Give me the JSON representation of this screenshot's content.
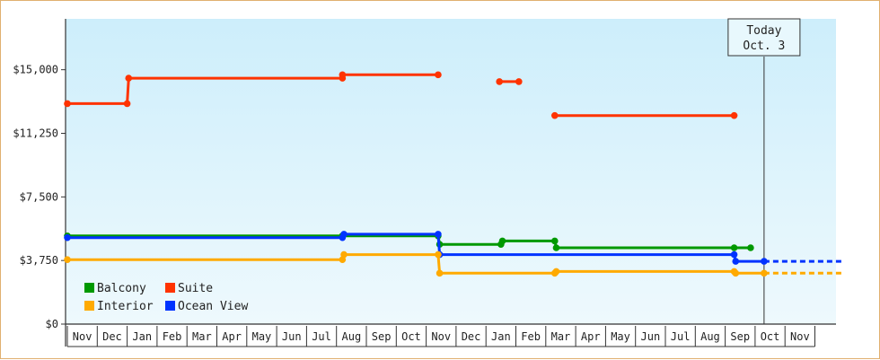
{
  "chart_data": {
    "type": "line",
    "step": true,
    "title": "",
    "xlabel": "",
    "ylabel": "",
    "ylim": [
      0,
      18000
    ],
    "yticks": [
      {
        "value": 0,
        "label": "$0"
      },
      {
        "value": 3750,
        "label": "$3,750"
      },
      {
        "value": 7500,
        "label": "$7,500"
      },
      {
        "value": 11250,
        "label": "$11,250"
      },
      {
        "value": 15000,
        "label": "$15,000"
      }
    ],
    "months": [
      "Nov",
      "Dec",
      "Jan",
      "Feb",
      "Mar",
      "Apr",
      "May",
      "Jun",
      "Jul",
      "Aug",
      "Sep",
      "Oct",
      "Nov",
      "Dec",
      "Jan",
      "Feb",
      "Mar",
      "Apr",
      "May",
      "Jun",
      "Jul",
      "Aug",
      "Sep",
      "Oct",
      "Nov"
    ],
    "grid": false,
    "background": {
      "top": "#cdeefb",
      "bottom": "#eef9fd"
    },
    "legend": {
      "position": "bottom-left"
    },
    "today": {
      "label": "Today",
      "date": "Oct. 3",
      "x": 23.3
    },
    "series": [
      {
        "name": "Suite",
        "color": "#ff3300",
        "segments": [
          [
            [
              0.0,
              13000
            ],
            [
              2.0,
              13000
            ],
            [
              2.05,
              14500
            ],
            [
              9.2,
              14500
            ],
            [
              9.2,
              14700
            ],
            [
              12.4,
              14700
            ]
          ],
          [
            [
              14.45,
              14300
            ],
            [
              15.1,
              14300
            ]
          ],
          [
            [
              16.3,
              12300
            ],
            [
              22.3,
              12300
            ]
          ]
        ],
        "future": null
      },
      {
        "name": "Balcony",
        "color": "#009900",
        "segments": [
          [
            [
              0.0,
              5200
            ],
            [
              9.2,
              5200
            ],
            [
              9.2,
              5200
            ],
            [
              12.4,
              5200
            ],
            [
              12.45,
              4700
            ],
            [
              14.5,
              4700
            ],
            [
              14.55,
              4900
            ],
            [
              16.3,
              4900
            ],
            [
              16.35,
              4500
            ],
            [
              22.3,
              4500
            ],
            [
              22.85,
              4500
            ]
          ]
        ],
        "future": null
      },
      {
        "name": "Ocean View",
        "color": "#0033ff",
        "segments": [
          [
            [
              0.0,
              5100
            ],
            [
              9.2,
              5100
            ],
            [
              9.25,
              5300
            ],
            [
              12.4,
              5300
            ],
            [
              12.45,
              4100
            ],
            [
              22.3,
              4100
            ],
            [
              22.35,
              3700
            ],
            [
              23.3,
              3700
            ]
          ]
        ],
        "future": [
          [
            23.3,
            3700
          ],
          [
            25.9,
            3700
          ]
        ]
      },
      {
        "name": "Interior",
        "color": "#ffaa00",
        "segments": [
          [
            [
              0.0,
              3800
            ],
            [
              9.2,
              3800
            ],
            [
              9.25,
              4100
            ],
            [
              12.4,
              4100
            ],
            [
              12.45,
              3000
            ],
            [
              16.3,
              3000
            ],
            [
              16.35,
              3100
            ],
            [
              22.3,
              3100
            ],
            [
              22.35,
              3000
            ],
            [
              23.3,
              3000
            ]
          ]
        ],
        "future": [
          [
            23.3,
            3000
          ],
          [
            25.9,
            3000
          ]
        ]
      }
    ],
    "legend_entries": [
      {
        "series": 1,
        "col": 0,
        "row": 0
      },
      {
        "series": 0,
        "col": 1,
        "row": 0
      },
      {
        "series": 3,
        "col": 0,
        "row": 1
      },
      {
        "series": 2,
        "col": 1,
        "row": 1
      }
    ]
  }
}
